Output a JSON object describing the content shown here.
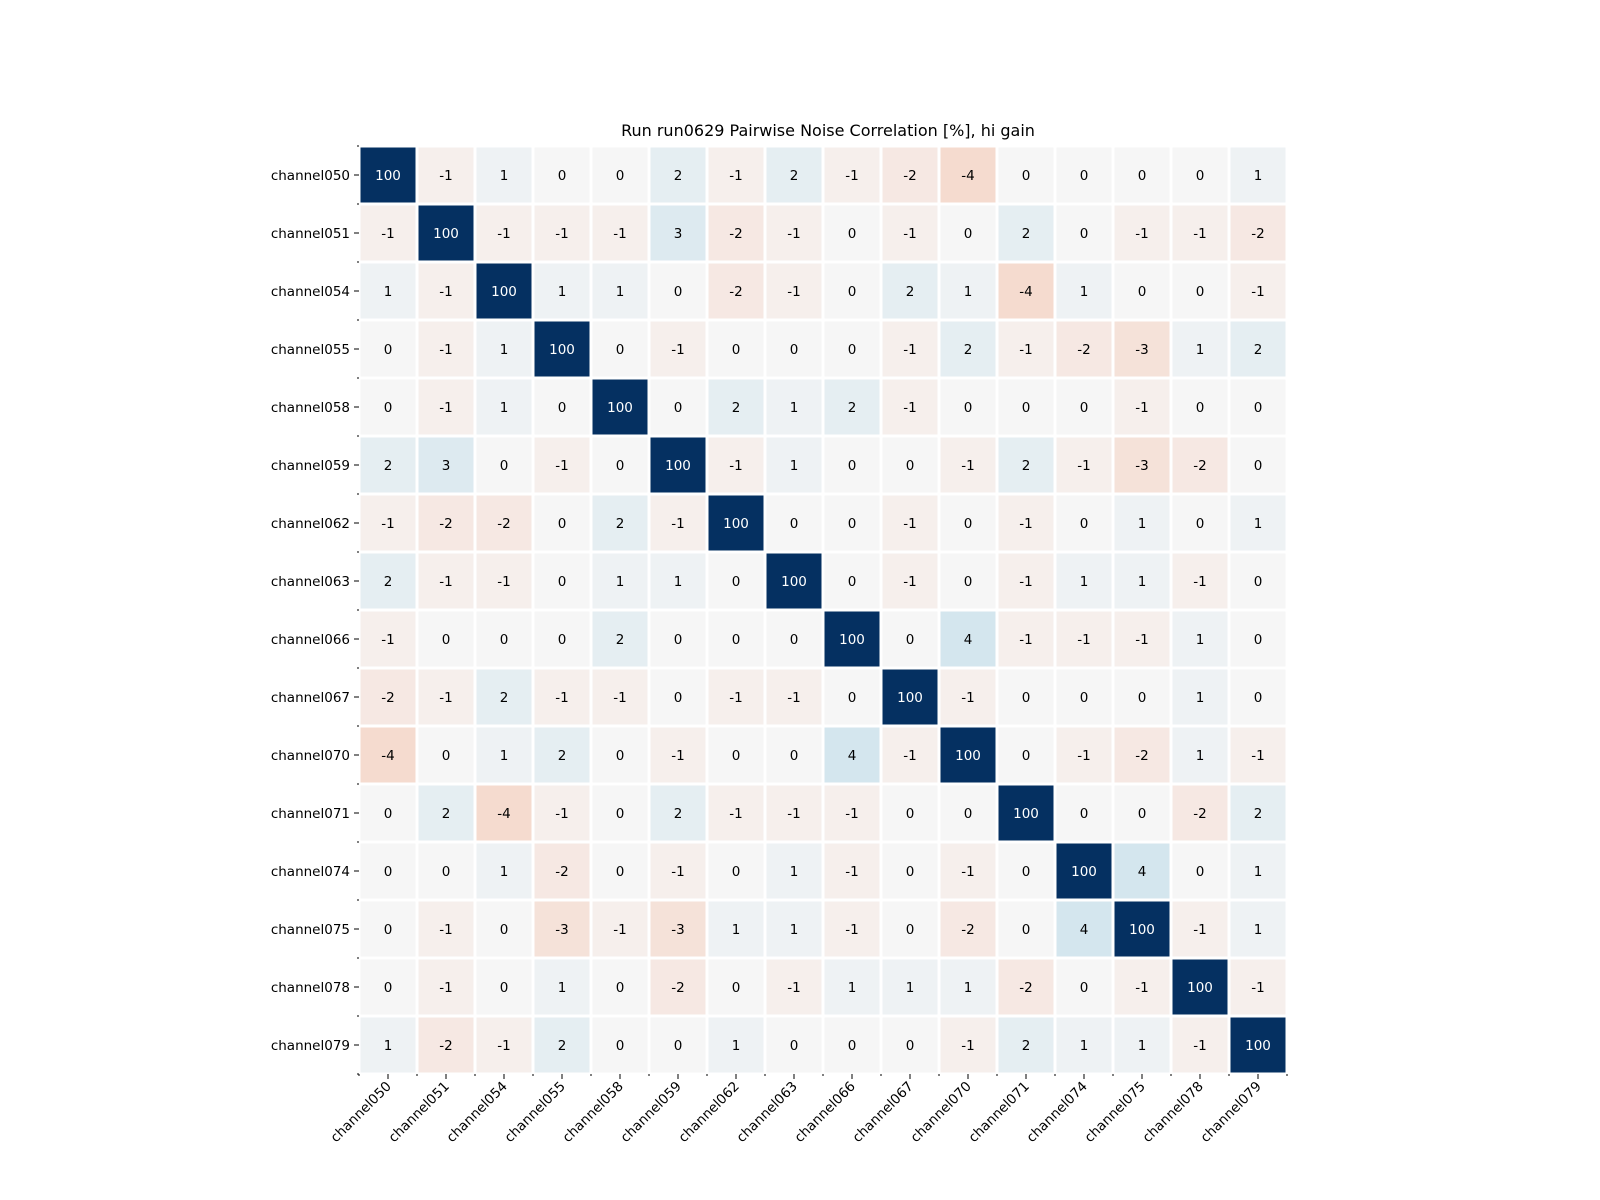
{
  "chart_data": {
    "type": "heatmap",
    "title": "Run run0629 Pairwise Noise Correlation [%], hi gain",
    "xlabel": "",
    "ylabel": "",
    "labels": [
      "channel050",
      "channel051",
      "channel054",
      "channel055",
      "channel058",
      "channel059",
      "channel062",
      "channel063",
      "channel066",
      "channel067",
      "channel070",
      "channel071",
      "channel074",
      "channel075",
      "channel078",
      "channel079"
    ],
    "values": [
      [
        100,
        -1,
        1,
        0,
        0,
        2,
        -1,
        2,
        -1,
        -2,
        -4,
        0,
        0,
        0,
        0,
        1
      ],
      [
        -1,
        100,
        -1,
        -1,
        -1,
        3,
        -2,
        -1,
        0,
        -1,
        0,
        2,
        0,
        -1,
        -1,
        -2
      ],
      [
        1,
        -1,
        100,
        1,
        1,
        0,
        -2,
        -1,
        0,
        2,
        1,
        -4,
        1,
        0,
        0,
        -1
      ],
      [
        0,
        -1,
        1,
        100,
        0,
        -1,
        0,
        0,
        0,
        -1,
        2,
        -1,
        -2,
        -3,
        1,
        2
      ],
      [
        0,
        -1,
        1,
        0,
        100,
        0,
        2,
        1,
        2,
        -1,
        0,
        0,
        0,
        -1,
        0,
        0
      ],
      [
        2,
        3,
        0,
        -1,
        0,
        100,
        -1,
        1,
        0,
        0,
        -1,
        2,
        -1,
        -3,
        -2,
        0
      ],
      [
        -1,
        -2,
        -2,
        0,
        2,
        -1,
        100,
        0,
        0,
        -1,
        0,
        -1,
        0,
        1,
        0,
        1
      ],
      [
        2,
        -1,
        -1,
        0,
        1,
        1,
        0,
        100,
        0,
        -1,
        0,
        -1,
        1,
        1,
        -1,
        0
      ],
      [
        -1,
        0,
        0,
        0,
        2,
        0,
        0,
        0,
        100,
        0,
        4,
        -1,
        -1,
        -1,
        1,
        0
      ],
      [
        -2,
        -1,
        2,
        -1,
        -1,
        0,
        -1,
        -1,
        0,
        100,
        -1,
        0,
        0,
        0,
        1,
        0
      ],
      [
        -4,
        0,
        1,
        2,
        0,
        -1,
        0,
        0,
        4,
        -1,
        100,
        0,
        -1,
        -2,
        1,
        -1
      ],
      [
        0,
        2,
        -4,
        -1,
        0,
        2,
        -1,
        -1,
        -1,
        0,
        0,
        100,
        0,
        0,
        -2,
        2
      ],
      [
        0,
        0,
        1,
        -2,
        0,
        -1,
        0,
        1,
        -1,
        0,
        -1,
        0,
        100,
        4,
        0,
        1
      ],
      [
        0,
        -1,
        0,
        -3,
        -1,
        -3,
        1,
        1,
        -1,
        0,
        -2,
        0,
        4,
        100,
        -1,
        1
      ],
      [
        0,
        -1,
        0,
        1,
        0,
        -2,
        0,
        -1,
        1,
        1,
        1,
        -2,
        0,
        -1,
        100,
        -1
      ],
      [
        1,
        -2,
        -1,
        2,
        0,
        0,
        1,
        0,
        0,
        0,
        -1,
        2,
        1,
        1,
        -1,
        100
      ]
    ],
    "colormap": "diverging blue-white-red (positive blue, negative red)",
    "color_range": [
      -100,
      100
    ],
    "colors": {
      "positive_end": "#053061",
      "negative_end": "#67001f",
      "mid": "#f7f7f7"
    },
    "grid": false,
    "legend": "none"
  }
}
